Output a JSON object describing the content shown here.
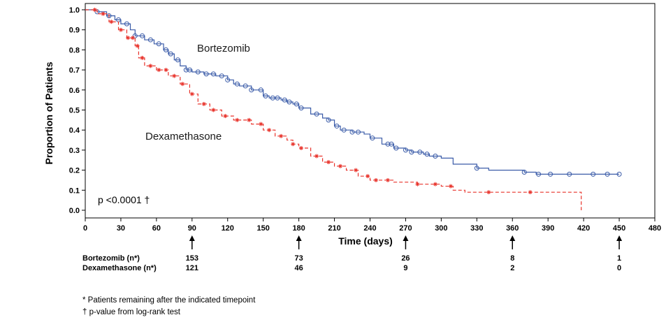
{
  "chart_data": {
    "type": "line",
    "subtype": "kaplan-meier",
    "xlabel": "Time (days)",
    "ylabel": "Proportion of Patients",
    "xlim": [
      0,
      480
    ],
    "ylim": [
      0.0,
      1.0
    ],
    "xticks": [
      0,
      30,
      60,
      90,
      120,
      150,
      180,
      210,
      240,
      270,
      300,
      330,
      360,
      390,
      420,
      450,
      480
    ],
    "yticks": [
      0.0,
      0.1,
      0.2,
      0.3,
      0.4,
      0.5,
      0.6,
      0.7,
      0.8,
      0.9,
      1.0
    ],
    "ytick_labels": [
      "0.0",
      "0.1",
      "0.2",
      "0.3",
      "0.4",
      "0.5",
      "0.6",
      "0.7",
      "0.8",
      "0.9",
      "1.0"
    ],
    "series": [
      {
        "name": "Bortezomib",
        "color": "#3a5ba8",
        "line_style": "solid",
        "censor_marker": "circle",
        "x": [
          0,
          10,
          18,
          25,
          30,
          38,
          42,
          50,
          58,
          66,
          70,
          75,
          80,
          85,
          90,
          100,
          110,
          120,
          125,
          130,
          140,
          150,
          155,
          165,
          170,
          175,
          180,
          190,
          200,
          205,
          210,
          215,
          225,
          235,
          240,
          250,
          260,
          270,
          275,
          285,
          290,
          300,
          310,
          330,
          340,
          360,
          370,
          380,
          400,
          420,
          450
        ],
        "y": [
          1.0,
          0.99,
          0.97,
          0.95,
          0.93,
          0.9,
          0.87,
          0.85,
          0.83,
          0.8,
          0.78,
          0.75,
          0.72,
          0.7,
          0.69,
          0.68,
          0.67,
          0.65,
          0.63,
          0.62,
          0.6,
          0.57,
          0.56,
          0.55,
          0.54,
          0.53,
          0.51,
          0.48,
          0.46,
          0.45,
          0.42,
          0.4,
          0.39,
          0.38,
          0.36,
          0.33,
          0.31,
          0.3,
          0.29,
          0.28,
          0.27,
          0.26,
          0.23,
          0.21,
          0.2,
          0.2,
          0.19,
          0.18,
          0.18,
          0.18,
          0.18
        ],
        "censored_x": [
          10,
          20,
          28,
          35,
          42,
          48,
          55,
          62,
          68,
          72,
          78,
          85,
          88,
          95,
          102,
          108,
          115,
          120,
          128,
          135,
          140,
          148,
          152,
          158,
          162,
          168,
          172,
          178,
          182,
          195,
          205,
          212,
          218,
          225,
          230,
          242,
          255,
          258,
          262,
          270,
          275,
          282,
          288,
          295,
          330,
          370,
          382,
          392,
          408,
          428,
          440,
          450
        ]
      },
      {
        "name": "Dexamethasone",
        "color": "#e8322a",
        "line_style": "dashed",
        "censor_marker": "star",
        "x": [
          0,
          10,
          20,
          28,
          35,
          42,
          45,
          50,
          60,
          70,
          80,
          88,
          95,
          105,
          115,
          125,
          140,
          150,
          160,
          170,
          175,
          180,
          190,
          200,
          210,
          220,
          230,
          240,
          260,
          280,
          300,
          310,
          320,
          340,
          360,
          380,
          400,
          415,
          418
        ],
        "y": [
          1.0,
          0.98,
          0.94,
          0.9,
          0.86,
          0.82,
          0.76,
          0.72,
          0.7,
          0.67,
          0.63,
          0.58,
          0.53,
          0.5,
          0.47,
          0.45,
          0.43,
          0.4,
          0.37,
          0.35,
          0.33,
          0.31,
          0.27,
          0.24,
          0.22,
          0.2,
          0.17,
          0.15,
          0.14,
          0.13,
          0.12,
          0.1,
          0.09,
          0.09,
          0.09,
          0.09,
          0.09,
          0.09,
          0.0
        ],
        "censored_x": [
          8,
          15,
          22,
          30,
          36,
          40,
          44,
          48,
          55,
          62,
          68,
          75,
          82,
          90,
          100,
          108,
          118,
          128,
          138,
          148,
          155,
          165,
          175,
          182,
          195,
          205,
          215,
          228,
          238,
          245,
          255,
          280,
          295,
          308,
          340,
          375
        ]
      }
    ],
    "annotations": {
      "bortezomib_label": "Bortezomib",
      "dexamethasone_label": "Dexamethasone",
      "pvalue": "p <0.0001 †"
    },
    "arrow_marks_days": [
      90,
      180,
      270,
      360,
      450
    ],
    "risk_table": {
      "rows": [
        {
          "label": "Bortezomib (n*)",
          "values": [
            "153",
            "73",
            "26",
            "8",
            "1"
          ]
        },
        {
          "label": "Dexamethasone (n*)",
          "values": [
            "121",
            "46",
            "9",
            "2",
            "0"
          ]
        }
      ]
    },
    "footnotes": [
      "*  Patients remaining after the indicated  timepoint",
      "†  p-value from log-rank test"
    ]
  }
}
